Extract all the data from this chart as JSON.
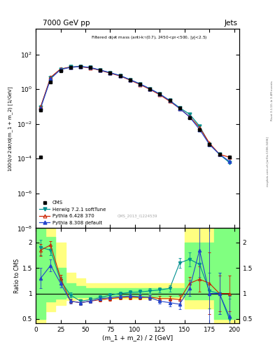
{
  "title_top": "7000 GeV pp",
  "title_right": "Jets",
  "ylabel_main": "1000/σ 2dσ/d(m_1 + m_2) [1/GeV]",
  "ylabel_ratio": "Ratio to CMS",
  "xlabel": "(m_1 + m_2) / 2 [GeV]",
  "cms_watermark": "CMS_2013_I1224539",
  "xlim": [
    0,
    205
  ],
  "ylim_main": [
    1e-08,
    3000.0
  ],
  "ylim_ratio": [
    0.42,
    2.28
  ],
  "x_bins": [
    5,
    15,
    25,
    35,
    45,
    55,
    65,
    75,
    85,
    95,
    105,
    115,
    125,
    135,
    145,
    155,
    165,
    175,
    185,
    195
  ],
  "y_cms": [
    0.065,
    2.5,
    11.0,
    18.0,
    20.5,
    17.5,
    12.5,
    8.8,
    6.0,
    3.5,
    2.0,
    1.05,
    0.52,
    0.22,
    0.085,
    0.022,
    0.0048,
    0.00065,
    0.00018,
    0.00012
  ],
  "y_herwig": [
    0.09,
    4.5,
    14.0,
    19.0,
    20.5,
    17.5,
    12.5,
    8.8,
    6.0,
    3.5,
    2.0,
    1.05,
    0.52,
    0.22,
    0.085,
    0.036,
    0.0075,
    0.00068,
    0.00018,
    6e-05
  ],
  "y_pythia6": [
    0.1,
    4.8,
    14.5,
    18.5,
    19.5,
    16.5,
    12.0,
    8.3,
    5.7,
    3.3,
    1.85,
    0.97,
    0.47,
    0.2,
    0.077,
    0.026,
    0.0062,
    0.00078,
    0.00018,
    0.00012
  ],
  "y_pythia8": [
    0.085,
    4.0,
    13.5,
    18.0,
    20.0,
    17.5,
    12.5,
    8.8,
    6.0,
    3.5,
    2.0,
    1.05,
    0.52,
    0.22,
    0.077,
    0.025,
    0.0048,
    0.00065,
    0.00018,
    7e-05
  ],
  "ratio_herwig": [
    1.9,
    1.85,
    1.25,
    0.97,
    0.85,
    0.88,
    0.92,
    0.97,
    1.0,
    1.02,
    1.03,
    1.05,
    1.07,
    1.1,
    1.6,
    1.67,
    1.57,
    1.05,
    1.0,
    0.5
  ],
  "ratio_pythia6": [
    1.85,
    1.95,
    1.3,
    0.85,
    0.82,
    0.85,
    0.88,
    0.9,
    0.92,
    0.93,
    0.92,
    0.93,
    0.9,
    0.9,
    0.88,
    1.2,
    1.28,
    1.2,
    1.0,
    1.0
  ],
  "ratio_pythia8": [
    1.3,
    1.55,
    1.2,
    0.85,
    0.82,
    0.85,
    0.9,
    0.92,
    0.94,
    0.95,
    0.94,
    0.92,
    0.85,
    0.82,
    0.79,
    1.1,
    1.85,
    1.0,
    1.0,
    0.55
  ],
  "herwig_yerr": [
    0.15,
    0.1,
    0.07,
    0.05,
    0.04,
    0.04,
    0.04,
    0.04,
    0.04,
    0.04,
    0.04,
    0.05,
    0.05,
    0.06,
    0.1,
    0.14,
    0.25,
    0.35,
    0.4,
    0.4
  ],
  "pythia8_yerr": [
    0.2,
    0.12,
    0.08,
    0.05,
    0.04,
    0.04,
    0.04,
    0.04,
    0.04,
    0.04,
    0.04,
    0.05,
    0.05,
    0.07,
    0.1,
    0.15,
    0.6,
    1.4,
    0.4,
    0.4
  ],
  "pythia6_yerr": [
    0.12,
    0.08,
    0.06,
    0.04,
    0.04,
    0.04,
    0.04,
    0.04,
    0.04,
    0.04,
    0.04,
    0.04,
    0.05,
    0.05,
    0.08,
    0.12,
    0.25,
    0.6,
    0.35,
    0.35
  ],
  "color_herwig": "#009090",
  "color_pythia6": "#cc2200",
  "color_pythia8": "#2244cc",
  "color_cms": "#000000",
  "band_x_edges": [
    0,
    10,
    20,
    30,
    40,
    50,
    60,
    70,
    80,
    90,
    100,
    110,
    120,
    130,
    140,
    150,
    160,
    180,
    205
  ],
  "band_green_lo": [
    0.5,
    0.84,
    0.9,
    0.92,
    0.93,
    0.93,
    0.93,
    0.94,
    0.94,
    0.94,
    0.94,
    0.94,
    0.94,
    0.94,
    0.94,
    0.88,
    0.88,
    0.5,
    0.5
  ],
  "band_green_hi": [
    2.28,
    2.1,
    1.5,
    1.2,
    1.15,
    1.1,
    1.1,
    1.1,
    1.1,
    1.1,
    1.1,
    1.1,
    1.1,
    1.1,
    1.1,
    2.0,
    2.0,
    2.28,
    2.28
  ],
  "band_yellow_lo": [
    0.42,
    0.65,
    0.78,
    0.87,
    0.88,
    0.88,
    0.88,
    0.9,
    0.9,
    0.9,
    0.9,
    0.9,
    0.9,
    0.9,
    0.9,
    0.7,
    0.7,
    0.42,
    0.42
  ],
  "band_yellow_hi": [
    2.28,
    2.28,
    2.0,
    1.4,
    1.3,
    1.2,
    1.2,
    1.2,
    1.2,
    1.2,
    1.2,
    1.2,
    1.2,
    1.2,
    1.2,
    2.28,
    2.28,
    2.28,
    2.28
  ]
}
